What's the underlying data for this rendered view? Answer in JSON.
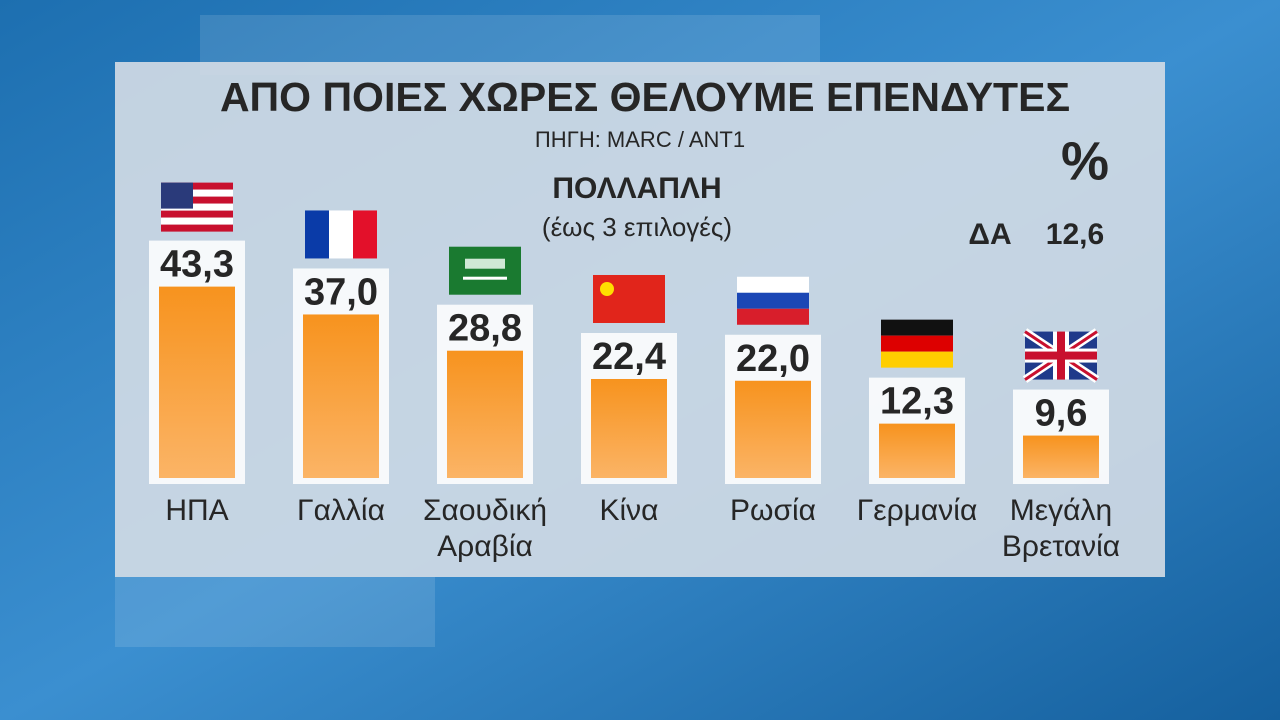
{
  "chart_data": {
    "type": "bar",
    "title": "ΑΠΟ ΠΟΙΕΣ ΧΩΡΕΣ ΘΕΛΟΥΜΕ ΕΠΕΝΔΥΤΕΣ",
    "subtitle": "ΠΗΓΗ: MARC / ANT1",
    "question_type": "ΠΟΛΛΑΠΛΗ",
    "note": "(έως 3 επιλογές)",
    "unit": "%",
    "no_answer": {
      "label": "ΔΑ",
      "value": 12.6,
      "value_label": "12,6"
    },
    "categories": [
      "ΗΠΑ",
      "Γαλλία",
      "Σαουδική Αραβία",
      "Κίνα",
      "Ρωσία",
      "Γερμανία",
      "Μεγάλη Βρετανία"
    ],
    "values": [
      43.3,
      37.0,
      28.8,
      22.4,
      22.0,
      12.3,
      9.6
    ],
    "value_labels": [
      "43,3",
      "37,0",
      "28,8",
      "22,4",
      "22,0",
      "12,3",
      "9,6"
    ],
    "color": "#f7931e"
  }
}
